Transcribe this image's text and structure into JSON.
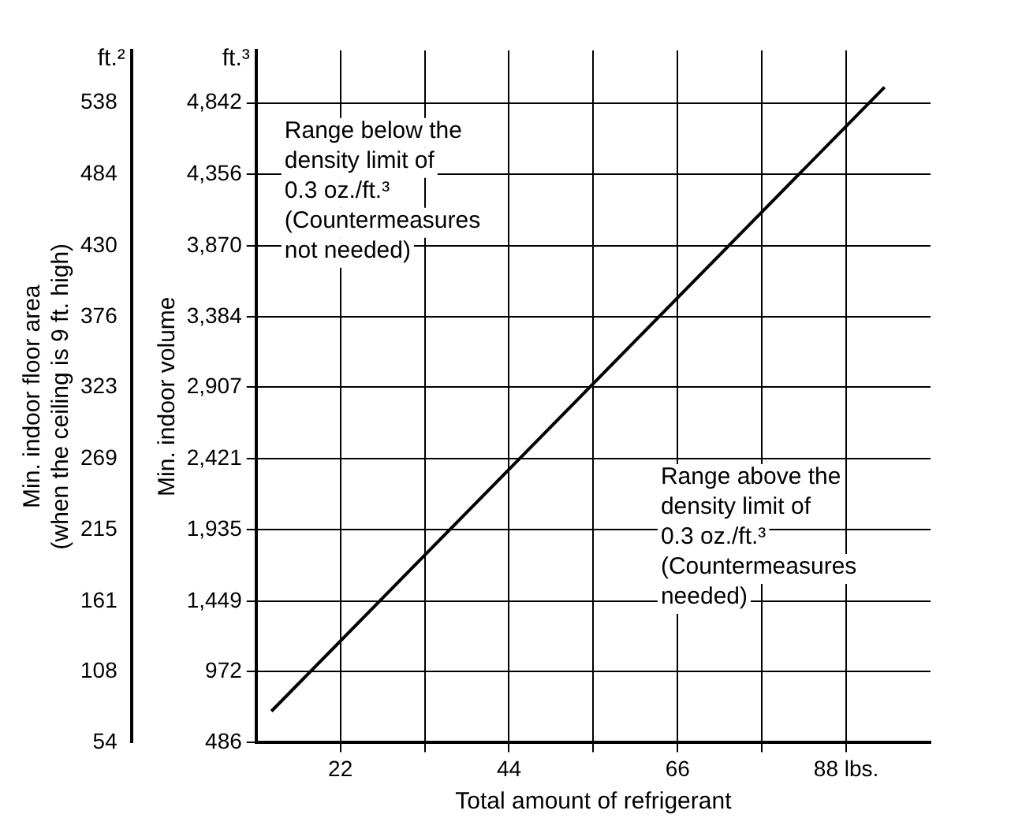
{
  "chart_data": {
    "type": "line",
    "xlabel": "Total amount of refrigerant",
    "ylabel": "Min. indoor volume",
    "y2label": "Min. indoor floor area\n(when the ceiling is 9 ft. high)",
    "x": [
      13,
      93
    ],
    "series": [
      {
        "color": "#000000",
        "values": [
          700,
          4950
        ]
      }
    ],
    "xlim": [
      11,
      99
    ],
    "xticks": [
      22,
      {
        "value": 33,
        "label": null
      },
      44,
      {
        "value": 55,
        "label": null
      },
      66,
      {
        "value": 77,
        "label": null
      },
      {
        "value": 88,
        "label": "88 lbs."
      }
    ],
    "ylim": [
      486,
      5200
    ],
    "yticks": [
      {
        "value": 486,
        "label": "486"
      },
      {
        "value": 972,
        "label": "972"
      },
      {
        "value": 1449,
        "label": "1,449"
      },
      {
        "value": 1935,
        "label": "1,935"
      },
      {
        "value": 2421,
        "label": "2,421"
      },
      {
        "value": 2907,
        "label": "2,907"
      },
      {
        "value": 3384,
        "label": "3,384"
      },
      {
        "value": 3870,
        "label": "3,870"
      },
      {
        "value": 4356,
        "label": "4,356"
      },
      {
        "value": 4842,
        "label": "4,842"
      }
    ],
    "y2lim": [
      54,
      577.8
    ],
    "y2ticks": [
      54,
      108,
      161,
      215,
      269,
      323,
      376,
      430,
      484,
      538
    ],
    "annotations": [
      "ft.²",
      "ft.³",
      "Range below the\ndensity limit of\n0.3 oz./ft.³\n(Countermeasures\nnot needed)",
      "Range above the\ndensity limit of\n0.3 oz./ft.³\n(Countermeasures\nneeded)"
    ],
    "grid": true,
    "legend": false,
    "marker": "none",
    "line_style": "solid"
  }
}
